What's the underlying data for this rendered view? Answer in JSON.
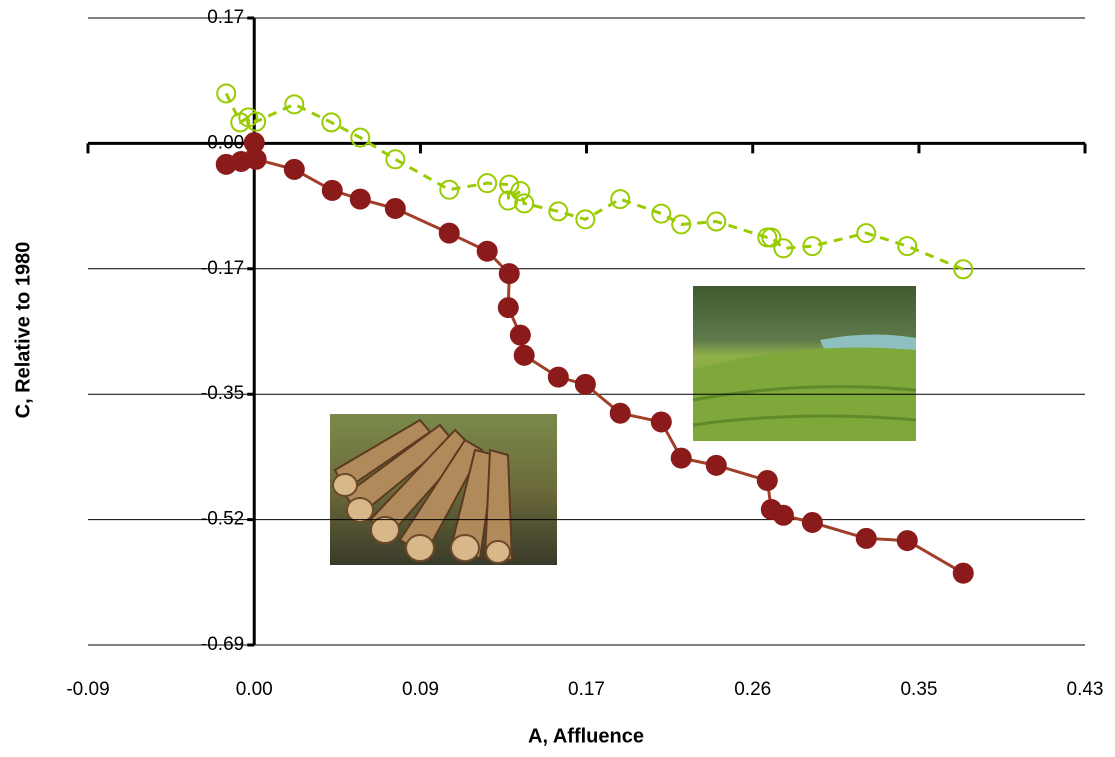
{
  "chart_data": {
    "type": "line",
    "xlabel": "A, Affluence",
    "ylabel": "C, Relative to 1980",
    "xlim": [
      -0.0867,
      0.4333
    ],
    "ylim": [
      -0.6933,
      0.1733
    ],
    "xticks": [
      {
        "value": -0.0867,
        "label": "-0.09"
      },
      {
        "value": 0,
        "label": "0.00"
      },
      {
        "value": 0.0867,
        "label": "0.09"
      },
      {
        "value": 0.1733,
        "label": "0.17"
      },
      {
        "value": 0.26,
        "label": "0.26"
      },
      {
        "value": 0.3467,
        "label": "0.35"
      },
      {
        "value": 0.4333,
        "label": "0.43"
      }
    ],
    "yticks": [
      {
        "value": 0.1733,
        "label": "0.17"
      },
      {
        "value": 0,
        "label": "0.00"
      },
      {
        "value": -0.1733,
        "label": "-0.17"
      },
      {
        "value": -0.3467,
        "label": "-0.35"
      },
      {
        "value": -0.52,
        "label": "-0.52"
      },
      {
        "value": -0.6933,
        "label": "-0.69"
      }
    ],
    "grid": true,
    "series": [
      {
        "color": "#8b1a1a",
        "line_color": "#a0402a",
        "marker": "filled",
        "dashed": false,
        "x": [
          -0.0146,
          -0.0068,
          0,
          0.001,
          0.0209,
          0.0407,
          0.0553,
          0.0736,
          0.1017,
          0.1215,
          0.133,
          0.1325,
          0.1388,
          0.1408,
          0.1586,
          0.1727,
          0.1909,
          0.2123,
          0.2227,
          0.241,
          0.2676,
          0.2697,
          0.276,
          0.2911,
          0.3192,
          0.3406,
          0.3698
        ],
        "values": [
          -0.029,
          -0.025,
          0.001,
          -0.022,
          -0.036,
          -0.065,
          -0.077,
          -0.09,
          -0.124,
          -0.149,
          -0.18,
          -0.227,
          -0.265,
          -0.293,
          -0.323,
          -0.333,
          -0.373,
          -0.385,
          -0.435,
          -0.445,
          -0.466,
          -0.506,
          -0.514,
          -0.524,
          -0.546,
          -0.549,
          -0.594
        ]
      },
      {
        "color": "#99cc00",
        "line_color": "#99cc00",
        "marker": "open",
        "dashed": true,
        "x": [
          -0.0146,
          -0.0073,
          -0.0031,
          0.001,
          0.0209,
          0.0402,
          0.0553,
          0.0736,
          0.1017,
          0.1215,
          0.133,
          0.1325,
          0.1388,
          0.1408,
          0.1586,
          0.1727,
          0.1909,
          0.2123,
          0.2227,
          0.241,
          0.2676,
          0.2697,
          0.276,
          0.2911,
          0.3192,
          0.3406,
          0.3698
        ],
        "values": [
          0.069,
          0.029,
          0.036,
          0.03,
          0.054,
          0.029,
          0.008,
          -0.022,
          -0.064,
          -0.055,
          -0.057,
          -0.079,
          -0.066,
          -0.083,
          -0.094,
          -0.105,
          -0.077,
          -0.097,
          -0.112,
          -0.108,
          -0.13,
          -0.13,
          -0.145,
          -0.142,
          -0.124,
          -0.142,
          -0.174
        ]
      }
    ]
  }
}
